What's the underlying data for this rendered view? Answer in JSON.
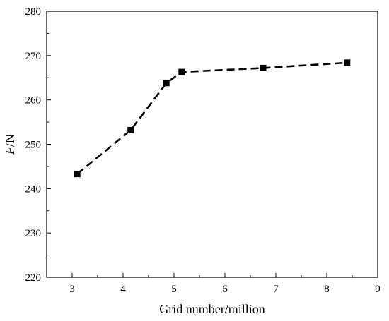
{
  "chart_data": {
    "type": "line",
    "xlabel": "Grid number/million",
    "ylabel_var": "F",
    "ylabel_unit": "/N",
    "xlim": [
      2.5,
      9
    ],
    "ylim": [
      220,
      280
    ],
    "x_ticks": [
      3,
      4,
      5,
      6,
      7,
      8,
      9
    ],
    "y_ticks": [
      220,
      230,
      240,
      250,
      260,
      270,
      280
    ],
    "line_style": "dashed",
    "marker": "square",
    "color": "#000000",
    "series": [
      {
        "x": [
          3.1,
          4.15,
          4.85,
          5.15,
          6.75,
          8.4
        ],
        "y": [
          243.3,
          253.2,
          263.8,
          266.3,
          267.2,
          268.4
        ]
      }
    ]
  }
}
